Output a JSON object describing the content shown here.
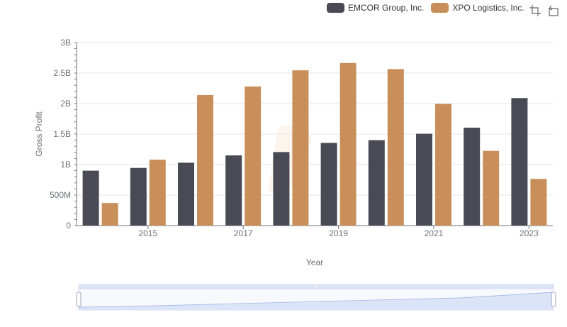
{
  "legend": {
    "items": [
      {
        "label": "EMCOR Group, Inc.",
        "color": "#4a4a55"
      },
      {
        "label": "XPO Logistics, Inc.",
        "color": "#c98f5b"
      }
    ]
  },
  "toolbox": {
    "icons": [
      "zoom-icon",
      "restore-icon"
    ]
  },
  "chart_data": {
    "type": "bar",
    "xlabel": "Year",
    "ylabel": "Gross Profit",
    "categories": [
      "2014",
      "2015",
      "2016",
      "2017",
      "2018",
      "2019",
      "2020",
      "2021",
      "2022",
      "2023"
    ],
    "x_tick_labels": [
      "2015",
      "2017",
      "2019",
      "2021",
      "2023"
    ],
    "y_tick_labels": [
      "0",
      "500M",
      "1B",
      "1.5B",
      "2B",
      "2.5B",
      "3B"
    ],
    "ylim": [
      0,
      3000000000
    ],
    "grid": true,
    "legend_position": "top-right",
    "series": [
      {
        "name": "EMCOR Group, Inc.",
        "color": "#4a4a55",
        "values": [
          900000000,
          945000000,
          1030000000,
          1150000000,
          1205000000,
          1355000000,
          1400000000,
          1505000000,
          1605000000,
          2090000000
        ]
      },
      {
        "name": "XPO Logistics, Inc.",
        "color": "#c98f5b",
        "values": [
          370000000,
          1080000000,
          2140000000,
          2280000000,
          2545000000,
          2665000000,
          2565000000,
          1995000000,
          1225000000,
          765000000
        ]
      }
    ]
  }
}
